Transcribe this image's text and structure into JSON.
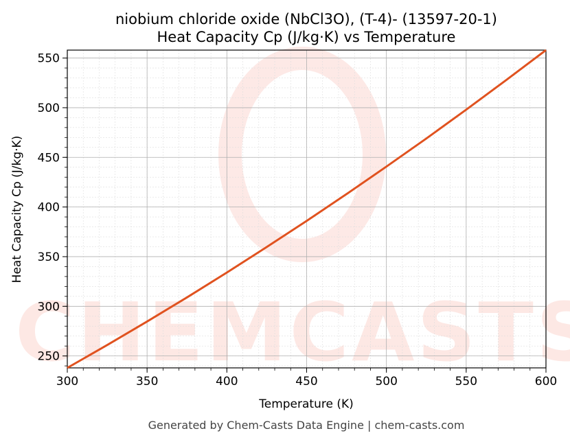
{
  "chart_data": {
    "type": "line",
    "title": "niobium chloride oxide (NbCl3O), (T-4)- (13597-20-1)",
    "subtitle": "Heat Capacity Cp (J/kg·K) vs Temperature",
    "xlabel": "Temperature (K)",
    "ylabel": "Heat Capacity Cp (J/kg·K)",
    "xlim": [
      300,
      600
    ],
    "ylim": [
      238,
      558
    ],
    "xticks": [
      300,
      350,
      400,
      450,
      500,
      550,
      600
    ],
    "yticks": [
      250,
      300,
      350,
      400,
      450,
      500,
      550
    ],
    "grid": true,
    "series": [
      {
        "color": "#e0521f",
        "x": [
          300,
          325,
          350,
          375,
          400,
          425,
          450,
          475,
          500,
          525,
          550,
          575,
          600
        ],
        "y": [
          238.0,
          261.0,
          284.7,
          309.0,
          334.0,
          359.7,
          386.0,
          413.0,
          440.7,
          469.0,
          498.0,
          527.7,
          558.0
        ]
      }
    ]
  },
  "watermark": "CHEMCASTS",
  "footer": "Generated by Chem-Casts Data Engine | chem-casts.com"
}
